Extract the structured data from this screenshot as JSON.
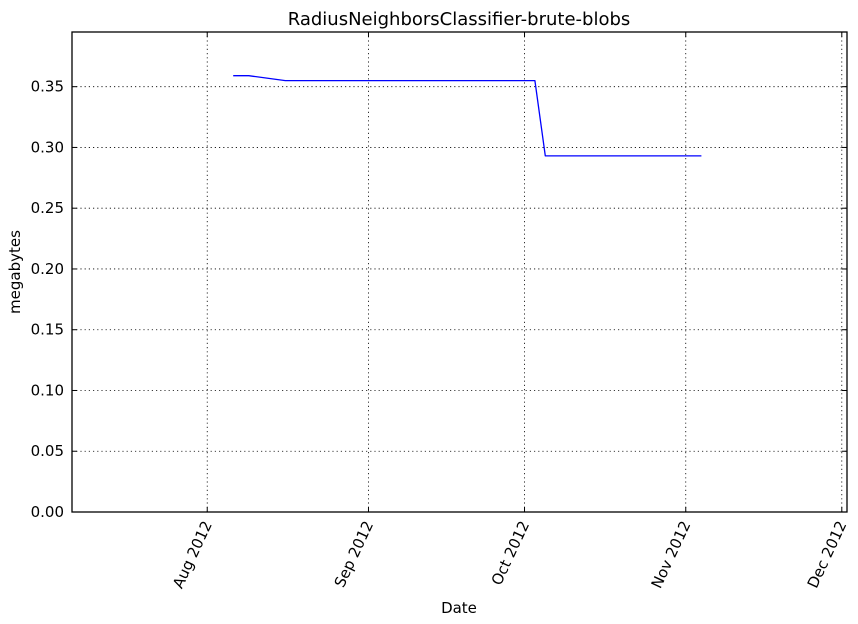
{
  "chart_data": {
    "type": "line",
    "title": "RadiusNeighborsClassifier-brute-blobs",
    "xlabel": "Date",
    "ylabel": "megabytes",
    "x_scale": "date",
    "xlim": [
      "2012-07-06",
      "2012-12-02"
    ],
    "ylim": [
      0,
      0.395
    ],
    "grid": true,
    "x_ticks": [
      {
        "date": "2012-08-01",
        "label": "Aug 2012"
      },
      {
        "date": "2012-09-01",
        "label": "Sep 2012"
      },
      {
        "date": "2012-10-01",
        "label": "Oct 2012"
      },
      {
        "date": "2012-11-01",
        "label": "Nov 2012"
      },
      {
        "date": "2012-12-01",
        "label": "Dec 2012"
      }
    ],
    "y_ticks": [
      {
        "value": 0.0,
        "label": "0.00"
      },
      {
        "value": 0.05,
        "label": "0.05"
      },
      {
        "value": 0.1,
        "label": "0.10"
      },
      {
        "value": 0.15,
        "label": "0.15"
      },
      {
        "value": 0.2,
        "label": "0.20"
      },
      {
        "value": 0.25,
        "label": "0.25"
      },
      {
        "value": 0.3,
        "label": "0.30"
      },
      {
        "value": 0.35,
        "label": "0.35"
      }
    ],
    "series": [
      {
        "color": "#0000ff",
        "points": [
          {
            "x": "2012-08-06",
            "y": 0.359
          },
          {
            "x": "2012-08-09",
            "y": 0.359
          },
          {
            "x": "2012-08-16",
            "y": 0.355
          },
          {
            "x": "2012-10-03",
            "y": 0.355
          },
          {
            "x": "2012-10-05",
            "y": 0.293
          },
          {
            "x": "2012-11-04",
            "y": 0.293
          }
        ]
      }
    ]
  }
}
